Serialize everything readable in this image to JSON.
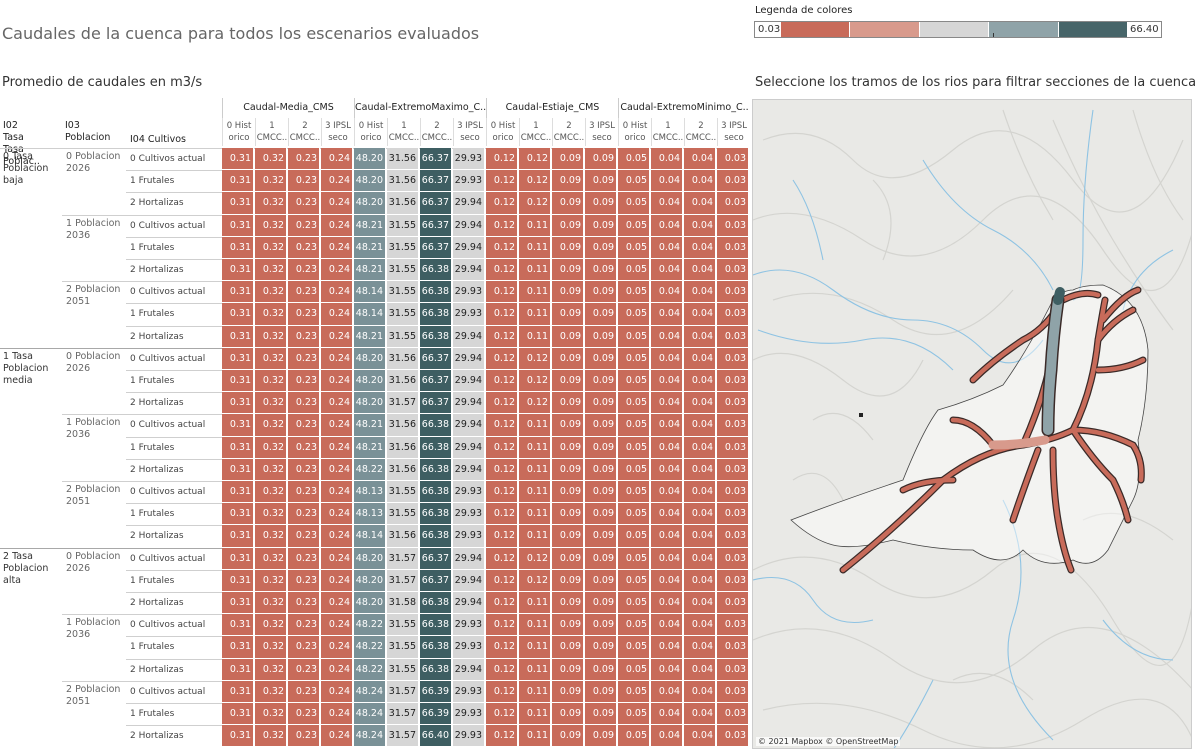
{
  "title": "Caudales de la cuenca para todos los escenarios evaluados",
  "subtitle": "Promedio de caudales en m3/s",
  "map_title": "Seleccione los tramos de los rios para filtrar secciones de la cuenca",
  "map_attribution": "© 2021 Mapbox © OpenStreetMap",
  "legend": {
    "title": "Legenda de colores",
    "min": "0.03",
    "max": "66.40",
    "colors": [
      "#c86b5a",
      "#d89a8c",
      "#d6d6d6",
      "#8fa3a8",
      "#476569"
    ]
  },
  "colors": {
    "red": "#c86b5a",
    "gray": "#d6d6d6",
    "steel": "#7a9197",
    "dark": "#3e5e62"
  },
  "header": {
    "dim1": "I02 Tasa Tasa Poblac..",
    "dim2": "I03 Poblacion",
    "dim3": "I04 Cultivos",
    "metrics": [
      "Caudal-Media_CMS",
      "Caudal-ExtremoMaximo_C..",
      "Caudal-Estiaje_CMS",
      "Caudal-ExtremoMinimo_C.."
    ],
    "subcols": [
      "0 Hist orico",
      "1 CMCC..",
      "2 CMCC..",
      "3 IPSL seco"
    ]
  },
  "groups": [
    {
      "label": "0 Tasa Poblacion baja",
      "pops": [
        {
          "label": "0 Poblacion 2026",
          "rows": [
            {
              "crop": "0 Cultivos actual",
              "v": [
                0.31,
                0.32,
                0.23,
                0.24,
                48.2,
                31.56,
                66.37,
                29.93,
                0.12,
                0.12,
                0.09,
                0.09,
                0.05,
                0.04,
                0.04,
                0.03
              ]
            },
            {
              "crop": "1 Frutales",
              "v": [
                0.31,
                0.32,
                0.23,
                0.24,
                48.2,
                31.56,
                66.37,
                29.93,
                0.12,
                0.12,
                0.09,
                0.09,
                0.05,
                0.04,
                0.04,
                0.03
              ]
            },
            {
              "crop": "2 Hortalizas",
              "v": [
                0.31,
                0.32,
                0.23,
                0.24,
                48.2,
                31.56,
                66.37,
                29.94,
                0.12,
                0.12,
                0.09,
                0.09,
                0.05,
                0.04,
                0.04,
                0.03
              ]
            }
          ]
        },
        {
          "label": "1 Poblacion 2036",
          "rows": [
            {
              "crop": "0 Cultivos actual",
              "v": [
                0.31,
                0.32,
                0.23,
                0.24,
                48.21,
                31.55,
                66.37,
                29.94,
                0.12,
                0.11,
                0.09,
                0.09,
                0.05,
                0.04,
                0.04,
                0.03
              ]
            },
            {
              "crop": "1 Frutales",
              "v": [
                0.31,
                0.32,
                0.23,
                0.24,
                48.21,
                31.55,
                66.37,
                29.94,
                0.12,
                0.11,
                0.09,
                0.09,
                0.05,
                0.04,
                0.04,
                0.03
              ]
            },
            {
              "crop": "2 Hortalizas",
              "v": [
                0.31,
                0.32,
                0.23,
                0.24,
                48.21,
                31.55,
                66.38,
                29.94,
                0.12,
                0.11,
                0.09,
                0.09,
                0.05,
                0.04,
                0.04,
                0.03
              ]
            }
          ]
        },
        {
          "label": "2 Poblacion 2051",
          "rows": [
            {
              "crop": "0 Cultivos actual",
              "v": [
                0.31,
                0.32,
                0.23,
                0.24,
                48.14,
                31.55,
                66.38,
                29.93,
                0.12,
                0.11,
                0.09,
                0.09,
                0.05,
                0.04,
                0.04,
                0.03
              ]
            },
            {
              "crop": "1 Frutales",
              "v": [
                0.31,
                0.32,
                0.23,
                0.24,
                48.14,
                31.55,
                66.38,
                29.93,
                0.12,
                0.11,
                0.09,
                0.09,
                0.05,
                0.04,
                0.04,
                0.03
              ]
            },
            {
              "crop": "2 Hortalizas",
              "v": [
                0.31,
                0.32,
                0.23,
                0.24,
                48.21,
                31.55,
                66.38,
                29.94,
                0.12,
                0.11,
                0.09,
                0.09,
                0.05,
                0.04,
                0.04,
                0.03
              ]
            }
          ]
        }
      ]
    },
    {
      "label": "1 Tasa Poblacion media",
      "pops": [
        {
          "label": "0 Poblacion 2026",
          "rows": [
            {
              "crop": "0 Cultivos actual",
              "v": [
                0.31,
                0.32,
                0.23,
                0.24,
                48.2,
                31.56,
                66.37,
                29.94,
                0.12,
                0.12,
                0.09,
                0.09,
                0.05,
                0.04,
                0.04,
                0.03
              ]
            },
            {
              "crop": "1 Frutales",
              "v": [
                0.31,
                0.32,
                0.23,
                0.24,
                48.2,
                31.56,
                66.37,
                29.94,
                0.12,
                0.12,
                0.09,
                0.09,
                0.05,
                0.04,
                0.04,
                0.03
              ]
            },
            {
              "crop": "2 Hortalizas",
              "v": [
                0.31,
                0.32,
                0.23,
                0.24,
                48.2,
                31.57,
                66.37,
                29.94,
                0.12,
                0.12,
                0.09,
                0.09,
                0.05,
                0.04,
                0.04,
                0.03
              ]
            }
          ]
        },
        {
          "label": "1 Poblacion 2036",
          "rows": [
            {
              "crop": "0 Cultivos actual",
              "v": [
                0.31,
                0.32,
                0.23,
                0.24,
                48.21,
                31.56,
                66.38,
                29.94,
                0.12,
                0.11,
                0.09,
                0.09,
                0.05,
                0.04,
                0.04,
                0.03
              ]
            },
            {
              "crop": "1 Frutales",
              "v": [
                0.31,
                0.32,
                0.23,
                0.24,
                48.21,
                31.56,
                66.38,
                29.94,
                0.12,
                0.11,
                0.09,
                0.09,
                0.05,
                0.04,
                0.04,
                0.03
              ]
            },
            {
              "crop": "2 Hortalizas",
              "v": [
                0.31,
                0.32,
                0.23,
                0.24,
                48.22,
                31.56,
                66.38,
                29.94,
                0.12,
                0.11,
                0.09,
                0.09,
                0.05,
                0.04,
                0.04,
                0.03
              ]
            }
          ]
        },
        {
          "label": "2 Poblacion 2051",
          "rows": [
            {
              "crop": "0 Cultivos actual",
              "v": [
                0.31,
                0.32,
                0.23,
                0.24,
                48.13,
                31.55,
                66.38,
                29.93,
                0.12,
                0.11,
                0.09,
                0.09,
                0.05,
                0.04,
                0.04,
                0.03
              ]
            },
            {
              "crop": "1 Frutales",
              "v": [
                0.31,
                0.32,
                0.23,
                0.24,
                48.13,
                31.55,
                66.38,
                29.93,
                0.12,
                0.11,
                0.09,
                0.09,
                0.05,
                0.04,
                0.04,
                0.03
              ]
            },
            {
              "crop": "2 Hortalizas",
              "v": [
                0.31,
                0.32,
                0.23,
                0.24,
                48.14,
                31.56,
                66.38,
                29.93,
                0.12,
                0.11,
                0.09,
                0.09,
                0.05,
                0.04,
                0.04,
                0.03
              ]
            }
          ]
        }
      ]
    },
    {
      "label": "2 Tasa Poblacion alta",
      "pops": [
        {
          "label": "0 Poblacion 2026",
          "rows": [
            {
              "crop": "0 Cultivos actual",
              "v": [
                0.31,
                0.32,
                0.23,
                0.24,
                48.2,
                31.57,
                66.37,
                29.94,
                0.12,
                0.12,
                0.09,
                0.09,
                0.05,
                0.04,
                0.04,
                0.03
              ]
            },
            {
              "crop": "1 Frutales",
              "v": [
                0.31,
                0.32,
                0.23,
                0.24,
                48.2,
                31.57,
                66.37,
                29.94,
                0.12,
                0.12,
                0.09,
                0.09,
                0.05,
                0.04,
                0.04,
                0.03
              ]
            },
            {
              "crop": "2 Hortalizas",
              "v": [
                0.31,
                0.32,
                0.23,
                0.24,
                48.2,
                31.58,
                66.38,
                29.94,
                0.12,
                0.11,
                0.09,
                0.09,
                0.05,
                0.04,
                0.04,
                0.03
              ]
            }
          ]
        },
        {
          "label": "1 Poblacion 2036",
          "rows": [
            {
              "crop": "0 Cultivos actual",
              "v": [
                0.31,
                0.32,
                0.23,
                0.24,
                48.22,
                31.55,
                66.38,
                29.93,
                0.12,
                0.11,
                0.09,
                0.09,
                0.05,
                0.04,
                0.04,
                0.03
              ]
            },
            {
              "crop": "1 Frutales",
              "v": [
                0.31,
                0.32,
                0.23,
                0.24,
                48.22,
                31.55,
                66.38,
                29.93,
                0.12,
                0.11,
                0.09,
                0.09,
                0.05,
                0.04,
                0.04,
                0.03
              ]
            },
            {
              "crop": "2 Hortalizas",
              "v": [
                0.31,
                0.32,
                0.23,
                0.24,
                48.22,
                31.55,
                66.38,
                29.94,
                0.12,
                0.11,
                0.09,
                0.09,
                0.05,
                0.04,
                0.04,
                0.03
              ]
            }
          ]
        },
        {
          "label": "2 Poblacion 2051",
          "rows": [
            {
              "crop": "0 Cultivos actual",
              "v": [
                0.31,
                0.32,
                0.23,
                0.24,
                48.24,
                31.57,
                66.39,
                29.93,
                0.12,
                0.11,
                0.09,
                0.09,
                0.05,
                0.04,
                0.04,
                0.03
              ]
            },
            {
              "crop": "1 Frutales",
              "v": [
                0.31,
                0.32,
                0.23,
                0.24,
                48.24,
                31.57,
                66.39,
                29.93,
                0.12,
                0.11,
                0.09,
                0.09,
                0.05,
                0.04,
                0.04,
                0.03
              ]
            },
            {
              "crop": "2 Hortalizas",
              "v": [
                0.31,
                0.32,
                0.23,
                0.24,
                48.24,
                31.57,
                66.4,
                29.93,
                0.12,
                0.11,
                0.09,
                0.09,
                0.05,
                0.04,
                0.04,
                0.03
              ]
            }
          ]
        }
      ]
    }
  ]
}
